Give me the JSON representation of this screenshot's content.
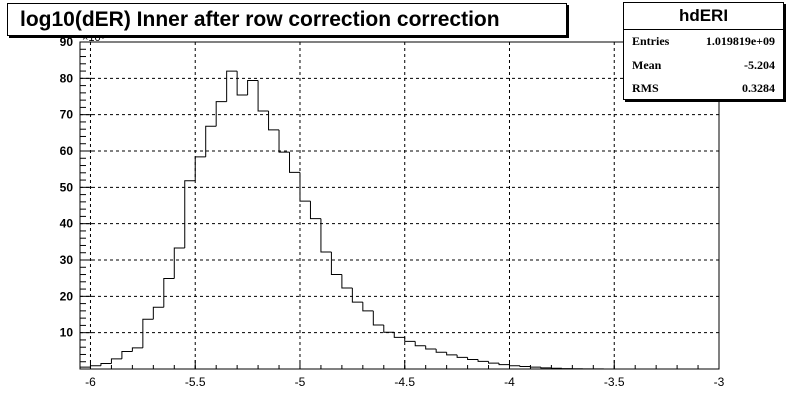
{
  "chart_data": {
    "type": "histogram",
    "title": "log10(dER) Inner after row correction  correction",
    "stats": {
      "name": "hdERI",
      "rows": [
        {
          "label": "Entries",
          "value": "1.019819e+09"
        },
        {
          "label": "Mean",
          "value": "-5.204"
        },
        {
          "label": "RMS",
          "value": "0.3284"
        }
      ]
    },
    "xlim": [
      -6.05,
      -3.0
    ],
    "ylim": [
      0,
      90
    ],
    "grid": true,
    "x_ticks": [
      -6,
      -5.5,
      -5,
      -4.5,
      -4,
      -3.5,
      -3
    ],
    "x_tick_labels": [
      "-6",
      "-5.5",
      "-5",
      "-4.5",
      "-4",
      "-3.5",
      "-3"
    ],
    "y_ticks": [
      10,
      20,
      30,
      40,
      50,
      60,
      70,
      80,
      90
    ],
    "y_tick_labels": [
      "10",
      "20",
      "30",
      "40",
      "50",
      "60",
      "70",
      "80",
      "90"
    ],
    "y_multiplier_label": "×10⁶",
    "bin_width": 0.05,
    "bin_edges_start": -6.05,
    "values": [
      0.5,
      0.9,
      1.5,
      2.8,
      4.8,
      5.8,
      13.7,
      17.0,
      24.9,
      33.3,
      51.8,
      58.4,
      66.8,
      73.6,
      82.0,
      75.4,
      79.4,
      71.0,
      65.8,
      59.7,
      54.1,
      46.2,
      41.4,
      32.2,
      26.0,
      22.3,
      18.4,
      16.0,
      12.1,
      10.1,
      8.7,
      7.6,
      6.4,
      5.5,
      4.6,
      3.9,
      3.2,
      2.6,
      2.1,
      1.6,
      1.2,
      0.9,
      0.7,
      0.5,
      0.3,
      0.2,
      0.12,
      0.07,
      0.04,
      0.02,
      0.01
    ]
  },
  "colors": {
    "axis": "#000000",
    "line": "#000000",
    "grid": "#000000"
  }
}
